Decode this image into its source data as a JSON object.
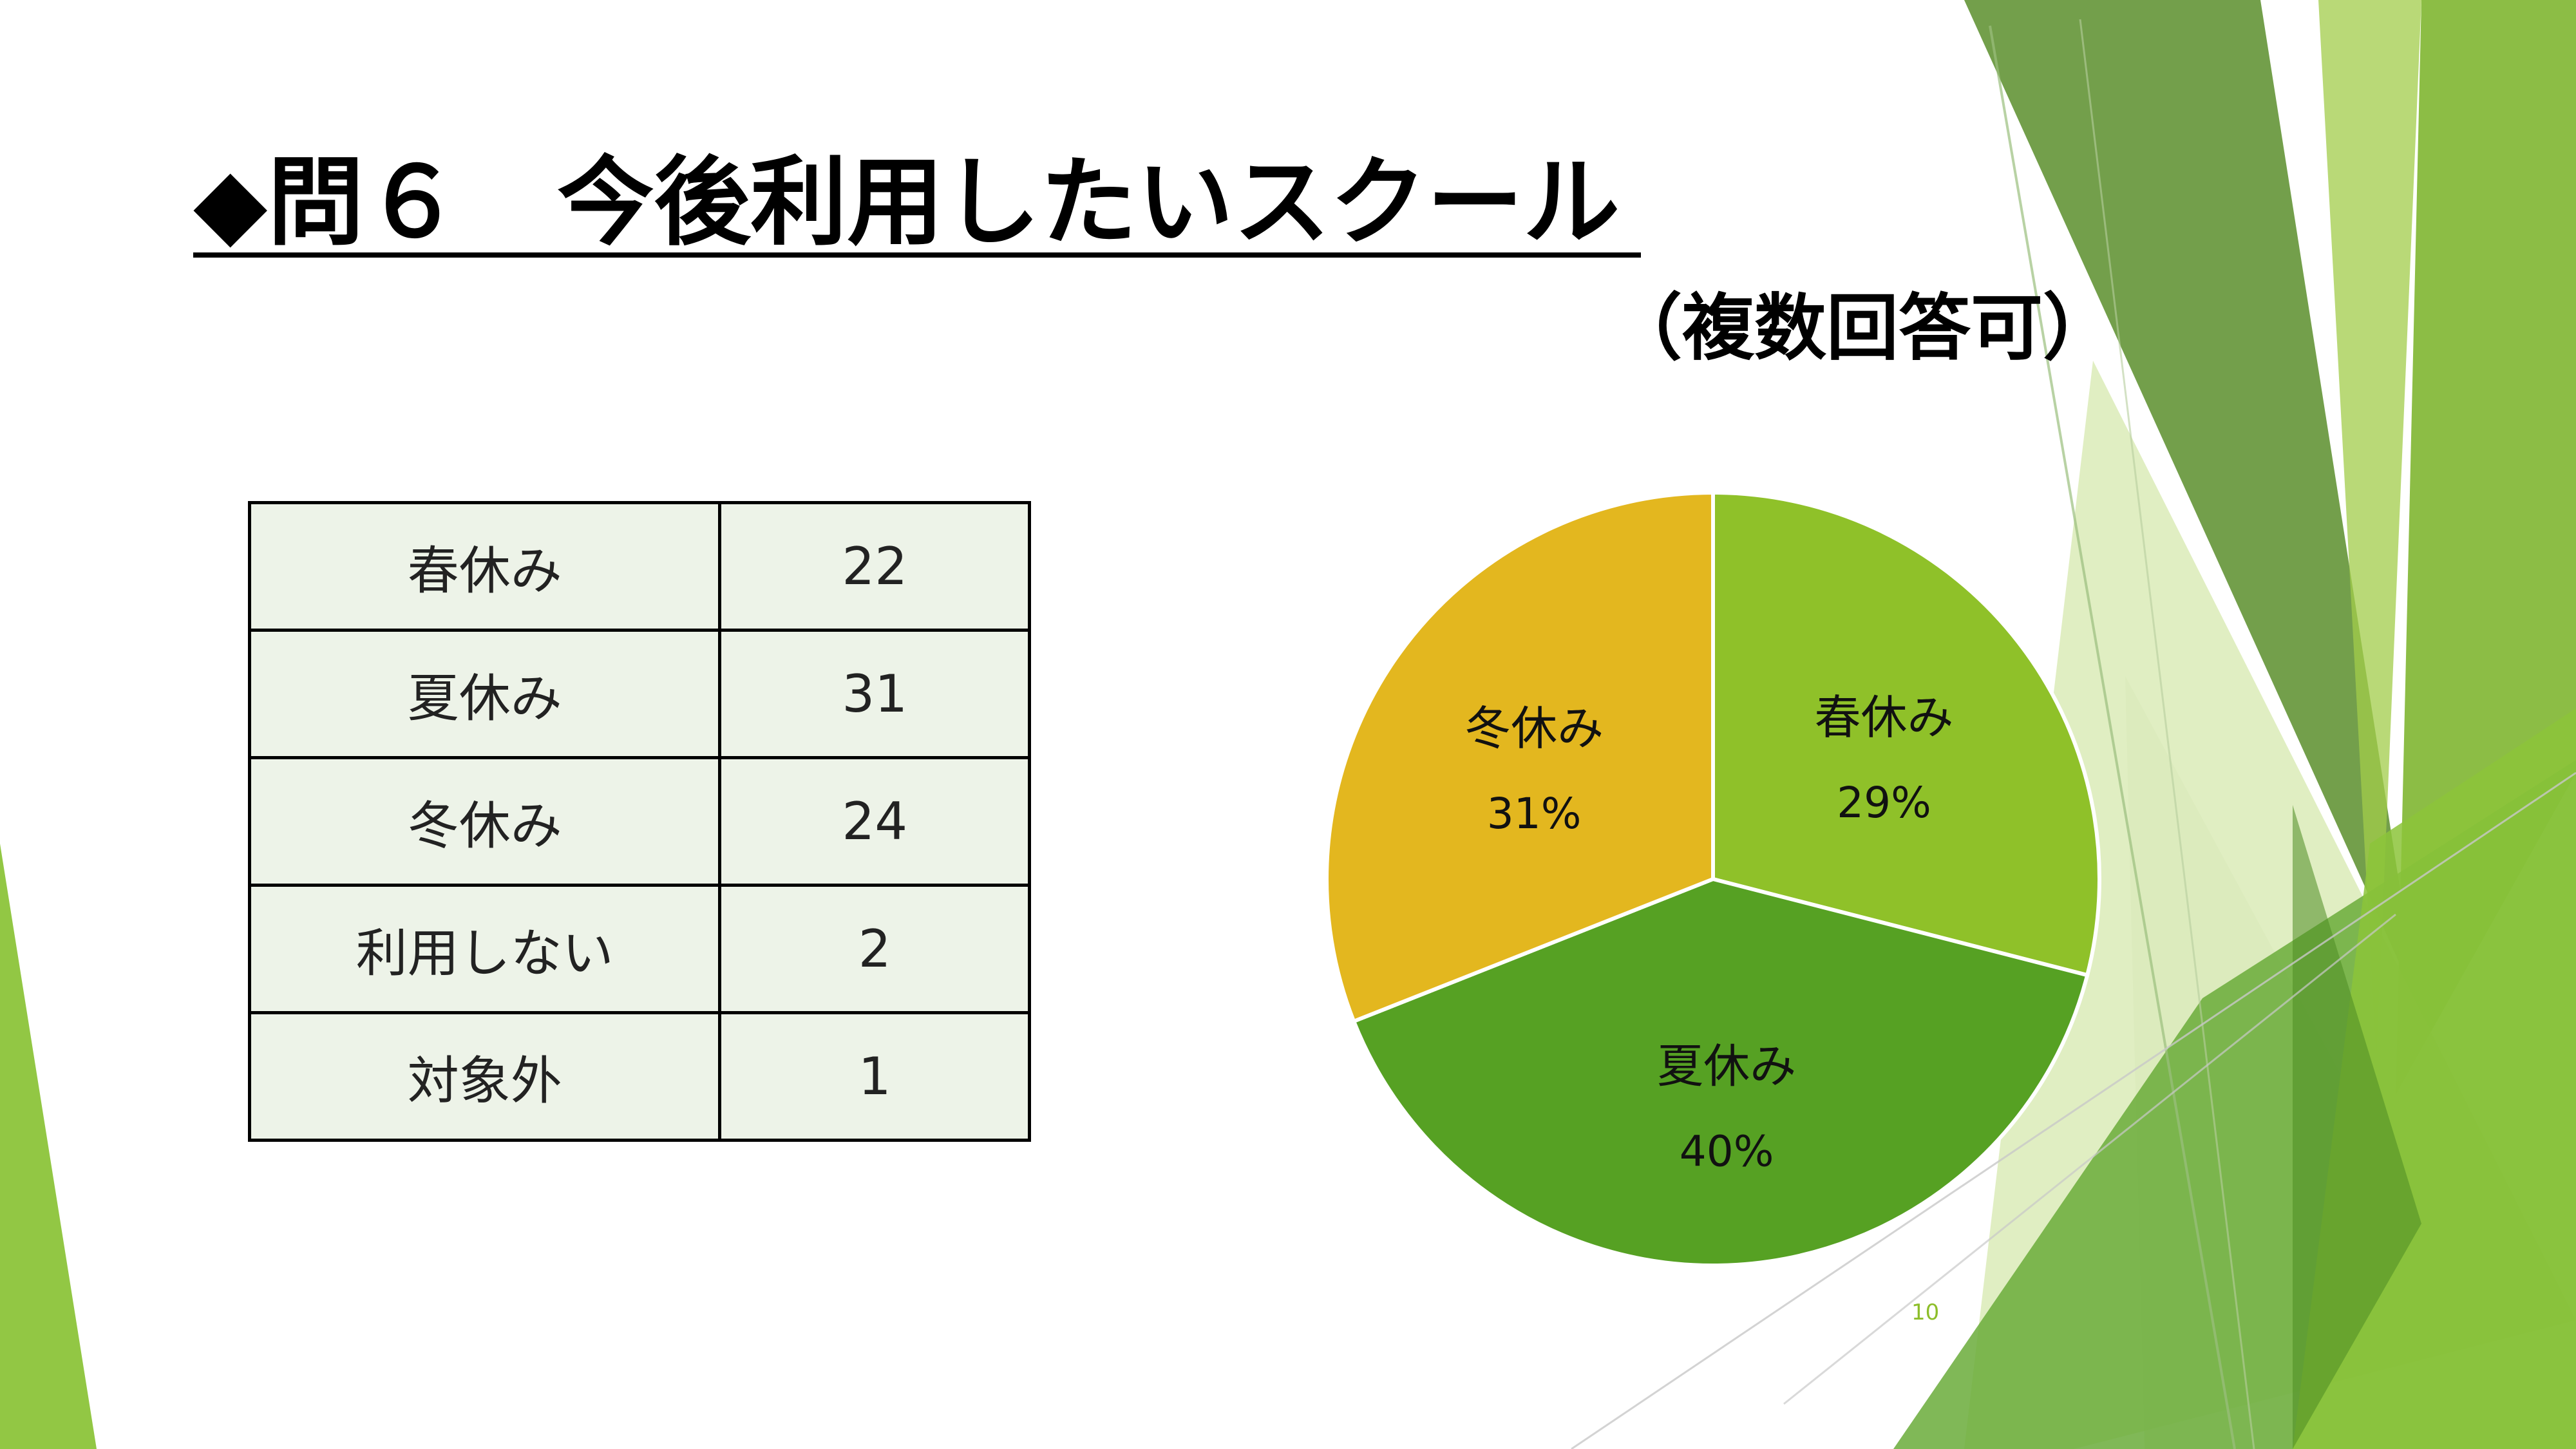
{
  "slide": {
    "title": "◆問６　今後利用したいスクール",
    "subtitle": "（複数回答可）",
    "page_number": "10"
  },
  "table": {
    "rows": [
      {
        "label": "春休み",
        "value": "22"
      },
      {
        "label": "夏休み",
        "value": "31"
      },
      {
        "label": "冬休み",
        "value": "24"
      },
      {
        "label": "利用しない",
        "value": "2"
      },
      {
        "label": "対象外",
        "value": "1"
      }
    ]
  },
  "chart_data": {
    "type": "pie",
    "title": "",
    "slices": [
      {
        "label": "春休み",
        "value": 29,
        "percent_label": "29%",
        "color": "#8fc129"
      },
      {
        "label": "夏休み",
        "value": 40,
        "percent_label": "40%",
        "color": "#56a123"
      },
      {
        "label": "冬休み",
        "value": 31,
        "percent_label": "31%",
        "color": "#e3b71f"
      }
    ],
    "start": "top",
    "direction": "clockwise",
    "data_labels": "category and percentage inside slices"
  },
  "theme": {
    "accent_light": "#9cc94a",
    "accent_dark": "#4f8c2a",
    "page_number_color": "#8dbe2a"
  }
}
